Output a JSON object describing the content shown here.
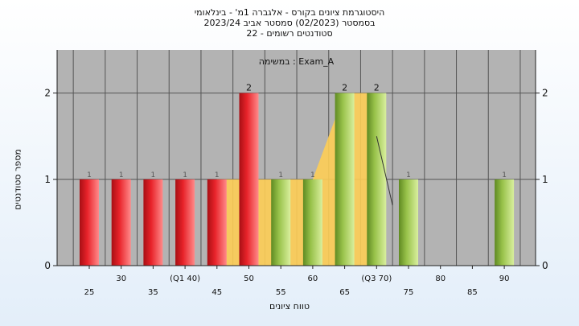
{
  "header": {
    "title_line_1": "היסטוגרמת ציונים בקורס - אלגברה 1מ' - בינלאומי",
    "title_line_2": "בסמסטר  (02/2023)  סמסטר אביב 2023/24",
    "title_line_3": "סטודנטים רשומים - 22"
  },
  "colors": {
    "plot_background": "#b3b3b3",
    "red_bar": "#e8232a",
    "green_bar": "#98c24a",
    "area_fill": "#fdcd55",
    "grid": "#555555"
  },
  "chart_data": {
    "type": "bar",
    "annotation": "במשימה : Exam_A",
    "xlabel": "טווח ציונים",
    "ylabel": "מספר סטודנטים",
    "ylim": [
      0,
      2.5
    ],
    "yticks": [
      0,
      1,
      2
    ],
    "y_axis_right_ticks": true,
    "grid": true,
    "x_tick_labels": [
      {
        "label": "25",
        "row": "lower"
      },
      {
        "label": "30",
        "row": "upper"
      },
      {
        "label": "35",
        "row": "lower"
      },
      {
        "label": "(Q1 40)",
        "row": "upper"
      },
      {
        "label": "45",
        "row": "lower"
      },
      {
        "label": "50",
        "row": "upper"
      },
      {
        "label": "55",
        "row": "lower"
      },
      {
        "label": "60",
        "row": "upper"
      },
      {
        "label": "65",
        "row": "lower"
      },
      {
        "label": "(Q3 70)",
        "row": "upper"
      },
      {
        "label": "75",
        "row": "lower"
      },
      {
        "label": "80",
        "row": "upper"
      },
      {
        "label": "85",
        "row": "lower"
      },
      {
        "label": "90",
        "row": "upper"
      }
    ],
    "bars": [
      {
        "x": 25,
        "value": 1,
        "color": "red"
      },
      {
        "x": 30,
        "value": 1,
        "color": "red"
      },
      {
        "x": 35,
        "value": 1,
        "color": "red"
      },
      {
        "x": 40,
        "value": 1,
        "color": "red"
      },
      {
        "x": 45,
        "value": 1,
        "color": "red"
      },
      {
        "x": 50,
        "value": 2,
        "color": "red"
      },
      {
        "x": 55,
        "value": 1,
        "color": "green"
      },
      {
        "x": 60,
        "value": 1,
        "color": "green"
      },
      {
        "x": 65,
        "value": 2,
        "color": "green"
      },
      {
        "x": 70,
        "value": 2,
        "color": "green"
      },
      {
        "x": 75,
        "value": 1,
        "color": "green"
      },
      {
        "x": 80,
        "value": 0,
        "color": "green"
      },
      {
        "x": 85,
        "value": 0,
        "color": "green"
      },
      {
        "x": 90,
        "value": 1,
        "color": "green"
      }
    ],
    "area_series": [
      {
        "x": 45,
        "y": 1
      },
      {
        "x": 60,
        "y": 1
      },
      {
        "x": 65,
        "y": 2
      },
      {
        "x": 70,
        "y": 2
      },
      {
        "x": 70,
        "y": 0
      }
    ],
    "trend_line": [
      {
        "x": 70,
        "y": 1.5
      },
      {
        "x": 72.5,
        "y": 0.7
      }
    ]
  }
}
